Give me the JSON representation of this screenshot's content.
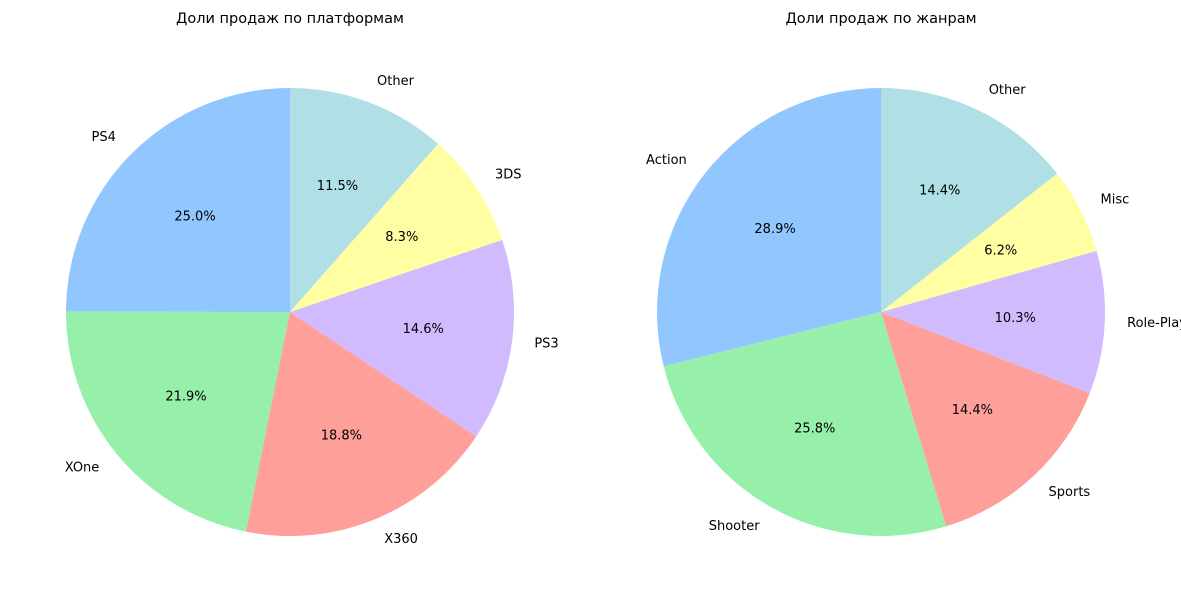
{
  "chart_data": [
    {
      "type": "pie",
      "title": "Доли продаж по платформам",
      "start_angle_deg": 90,
      "direction": "counterclockwise",
      "slices": [
        {
          "label": "PS4",
          "value": 25.0,
          "pct_label": "25.0%",
          "color": "#92c6ff"
        },
        {
          "label": "XOne",
          "value": 21.9,
          "pct_label": "21.9%",
          "color": "#97f0aa"
        },
        {
          "label": "X360",
          "value": 18.8,
          "pct_label": "18.8%",
          "color": "#ff9f9a"
        },
        {
          "label": "PS3",
          "value": 14.6,
          "pct_label": "14.6%",
          "color": "#d0bbff"
        },
        {
          "label": "3DS",
          "value": 8.3,
          "pct_label": "8.3%",
          "color": "#fffea3"
        },
        {
          "label": "Other",
          "value": 11.5,
          "pct_label": "11.5%",
          "color": "#b0e0e6"
        }
      ]
    },
    {
      "type": "pie",
      "title": "Доли продаж по жанрам",
      "start_angle_deg": 90,
      "direction": "counterclockwise",
      "slices": [
        {
          "label": "Action",
          "value": 28.9,
          "pct_label": "28.9%",
          "color": "#92c6ff"
        },
        {
          "label": "Shooter",
          "value": 25.8,
          "pct_label": "25.8%",
          "color": "#97f0aa"
        },
        {
          "label": "Sports",
          "value": 14.4,
          "pct_label": "14.4%",
          "color": "#ff9f9a"
        },
        {
          "label": "Role-Playing",
          "value": 10.3,
          "pct_label": "10.3%",
          "color": "#d0bbff"
        },
        {
          "label": "Misc",
          "value": 6.2,
          "pct_label": "6.2%",
          "color": "#fffea3"
        },
        {
          "label": "Other",
          "value": 14.4,
          "pct_label": "14.4%",
          "color": "#b0e0e6"
        }
      ]
    }
  ]
}
